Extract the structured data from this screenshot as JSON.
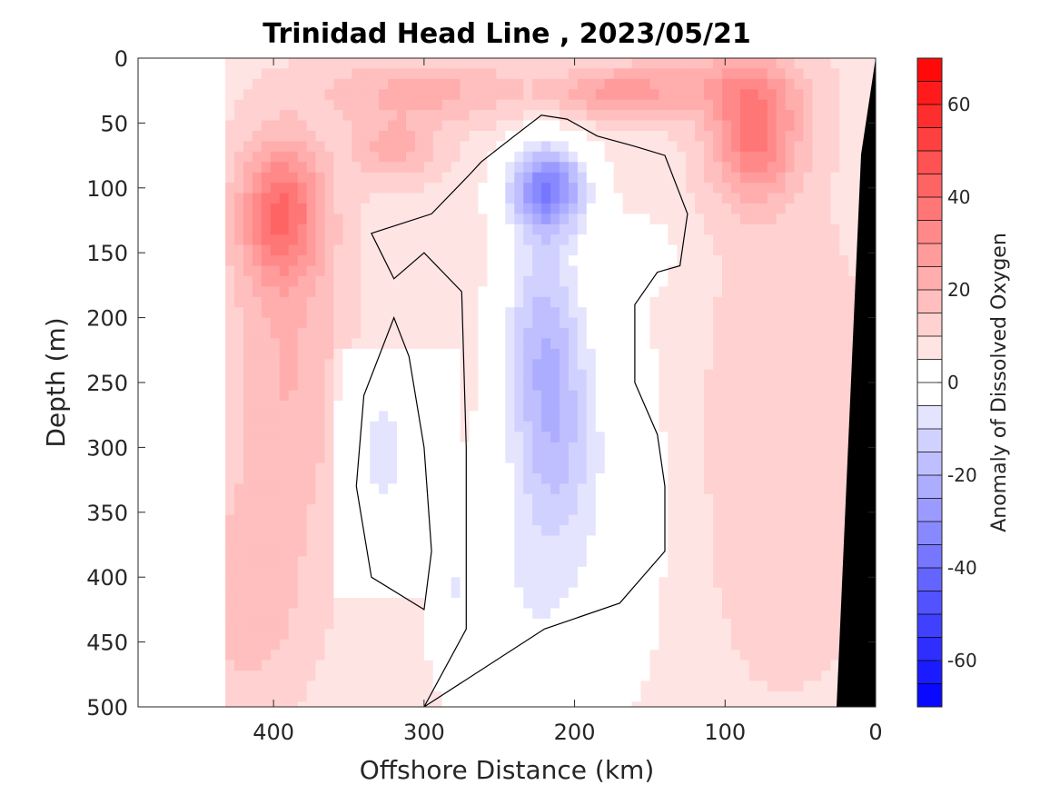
{
  "chart_data": {
    "type": "heatmap",
    "subtype": "filled contour section",
    "title": "Trinidad Head Line , 2023/05/21",
    "xlabel": "Offshore Distance (km)",
    "ylabel": "Depth (m)",
    "colorbar_label": "Anomaly of Dissolved Oxygen",
    "xlim": [
      490,
      0
    ],
    "x_reversed": true,
    "ylim": [
      0,
      500
    ],
    "y_reversed": true,
    "x_ticks": [
      400,
      300,
      200,
      100,
      0
    ],
    "y_ticks": [
      0,
      50,
      100,
      150,
      200,
      250,
      300,
      350,
      400,
      450,
      500
    ],
    "clim": [
      -70,
      70
    ],
    "colorbar_ticks": [
      60,
      40,
      20,
      0,
      -20,
      -40,
      -60
    ],
    "contour_interval": 5,
    "zero_contour_drawn": true,
    "data_extent_km": [
      432,
      0
    ],
    "colors": {
      "max": "#ff0000",
      "min": "#0000ff",
      "zero": "#ffffff",
      "bathymetry": "#000000",
      "contour_line": "#000000"
    },
    "features": [
      {
        "label": "positive",
        "x_km": 395,
        "depth_m": 118,
        "value": 48
      },
      {
        "label": "positive",
        "x_km": 80,
        "depth_m": 60,
        "value": 45
      },
      {
        "label": "positive",
        "x_km": 175,
        "depth_m": 28,
        "value": 35
      },
      {
        "label": "positive",
        "x_km": 320,
        "depth_m": 70,
        "value": 32
      },
      {
        "label": "negative",
        "x_km": 218,
        "depth_m": 100,
        "value": -52
      },
      {
        "label": "negative",
        "x_km": 215,
        "depth_m": 280,
        "value": -32
      },
      {
        "label": "negative",
        "x_km": 325,
        "depth_m": 300,
        "value": -10
      }
    ]
  }
}
